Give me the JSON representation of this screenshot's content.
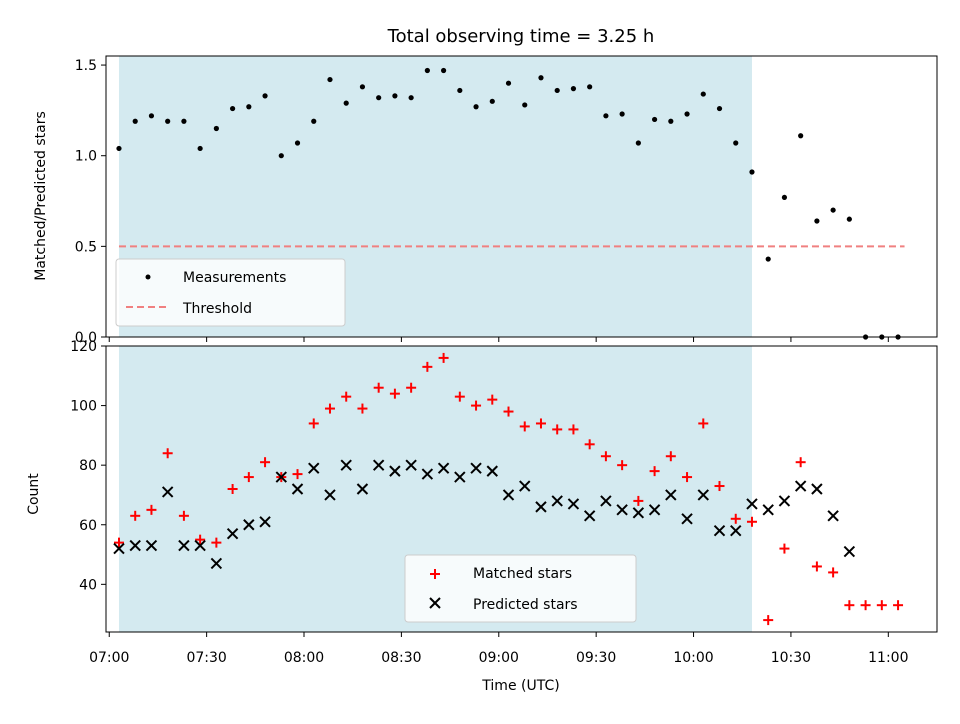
{
  "chart_data": [
    {
      "type": "scatter",
      "title": "Total observing time = 3.25 h",
      "xlabel": "",
      "ylabel": "Matched/Predicted stars",
      "ylim": [
        0,
        1.55
      ],
      "yticks": [
        "0.0",
        "0.5",
        "1.0",
        "1.5"
      ],
      "ytick_values": [
        0,
        0.5,
        1.0,
        1.5
      ],
      "shaded_interval": {
        "start": "07:03",
        "end": "10:18",
        "color": "#d4eaf0"
      },
      "threshold": {
        "name": "Threshold",
        "value": 0.5,
        "x_start": "07:03",
        "x_end": "11:05",
        "color": "#f08080"
      },
      "legend": {
        "position": "lower-left",
        "entries": [
          "Measurements",
          "Threshold"
        ]
      },
      "series": [
        {
          "name": "Measurements",
          "color": "#000000",
          "x": [
            "07:03",
            "07:08",
            "07:13",
            "07:18",
            "07:23",
            "07:28",
            "07:33",
            "07:38",
            "07:43",
            "07:48",
            "07:53",
            "07:58",
            "08:03",
            "08:08",
            "08:13",
            "08:18",
            "08:23",
            "08:28",
            "08:33",
            "08:38",
            "08:43",
            "08:48",
            "08:53",
            "08:58",
            "09:03",
            "09:08",
            "09:13",
            "09:18",
            "09:23",
            "09:28",
            "09:33",
            "09:38",
            "09:43",
            "09:48",
            "09:53",
            "09:58",
            "10:03",
            "10:08",
            "10:13",
            "10:18",
            "10:23",
            "10:28",
            "10:33",
            "10:38",
            "10:43",
            "10:48",
            "10:53",
            "10:58",
            "11:03"
          ],
          "values": [
            1.04,
            1.19,
            1.22,
            1.19,
            1.19,
            1.04,
            1.15,
            1.26,
            1.27,
            1.33,
            1.0,
            1.07,
            1.19,
            1.42,
            1.29,
            1.38,
            1.32,
            1.33,
            1.32,
            1.47,
            1.47,
            1.36,
            1.27,
            1.3,
            1.4,
            1.28,
            1.43,
            1.36,
            1.37,
            1.38,
            1.22,
            1.23,
            1.07,
            1.2,
            1.19,
            1.23,
            1.34,
            1.26,
            1.07,
            0.91,
            0.43,
            0.77,
            1.11,
            0.64,
            0.7,
            0.65,
            0.0,
            0.0,
            0.0
          ]
        }
      ]
    },
    {
      "type": "scatter",
      "title": "",
      "xlabel": "Time (UTC)",
      "ylabel": "Count",
      "ylim": [
        24,
        120
      ],
      "yticks": [
        "40",
        "60",
        "80",
        "100",
        "120"
      ],
      "ytick_values": [
        40,
        60,
        80,
        100,
        120
      ],
      "xlim": [
        "06:59",
        "11:15"
      ],
      "xticks": [
        "07:00",
        "07:30",
        "08:00",
        "08:30",
        "09:00",
        "09:30",
        "10:00",
        "10:30",
        "11:00"
      ],
      "shaded_interval": {
        "start": "07:03",
        "end": "10:18",
        "color": "#d4eaf0"
      },
      "legend": {
        "position": "lower-center",
        "entries": [
          "Matched stars",
          "Predicted stars"
        ]
      },
      "series": [
        {
          "name": "Matched stars",
          "marker": "plus",
          "color": "#ff0000",
          "x": [
            "07:03",
            "07:08",
            "07:13",
            "07:18",
            "07:23",
            "07:28",
            "07:33",
            "07:38",
            "07:43",
            "07:48",
            "07:53",
            "07:58",
            "08:03",
            "08:08",
            "08:13",
            "08:18",
            "08:23",
            "08:28",
            "08:33",
            "08:38",
            "08:43",
            "08:48",
            "08:53",
            "08:58",
            "09:03",
            "09:08",
            "09:13",
            "09:18",
            "09:23",
            "09:28",
            "09:33",
            "09:38",
            "09:43",
            "09:48",
            "09:53",
            "09:58",
            "10:03",
            "10:08",
            "10:13",
            "10:18",
            "10:23",
            "10:28",
            "10:33",
            "10:38",
            "10:43",
            "10:48",
            "10:53",
            "10:58",
            "11:03"
          ],
          "values": [
            54,
            63,
            65,
            84,
            63,
            55,
            54,
            72,
            76,
            81,
            76,
            77,
            94,
            99,
            103,
            99,
            106,
            104,
            106,
            113,
            116,
            103,
            100,
            102,
            98,
            93,
            94,
            92,
            92,
            87,
            83,
            80,
            68,
            78,
            83,
            76,
            94,
            73,
            62,
            61,
            28,
            52,
            81,
            46,
            44,
            33,
            33,
            33,
            33
          ]
        },
        {
          "name": "Predicted stars",
          "marker": "x",
          "color": "#000000",
          "x": [
            "07:03",
            "07:08",
            "07:13",
            "07:18",
            "07:23",
            "07:28",
            "07:33",
            "07:38",
            "07:43",
            "07:48",
            "07:53",
            "07:58",
            "08:03",
            "08:08",
            "08:13",
            "08:18",
            "08:23",
            "08:28",
            "08:33",
            "08:38",
            "08:43",
            "08:48",
            "08:53",
            "08:58",
            "09:03",
            "09:08",
            "09:13",
            "09:18",
            "09:23",
            "09:28",
            "09:33",
            "09:38",
            "09:43",
            "09:48",
            "09:53",
            "09:58",
            "10:03",
            "10:08",
            "10:13",
            "10:18",
            "10:23",
            "10:28",
            "10:33",
            "10:38",
            "10:43",
            "10:48"
          ],
          "values": [
            52,
            53,
            53,
            71,
            53,
            53,
            47,
            57,
            60,
            61,
            76,
            72,
            79,
            70,
            80,
            72,
            80,
            78,
            80,
            77,
            79,
            76,
            79,
            78,
            70,
            73,
            66,
            68,
            67,
            63,
            68,
            65,
            64,
            65,
            70,
            62,
            70,
            58,
            58,
            67,
            65,
            68,
            73,
            72,
            63,
            51
          ]
        }
      ]
    }
  ]
}
